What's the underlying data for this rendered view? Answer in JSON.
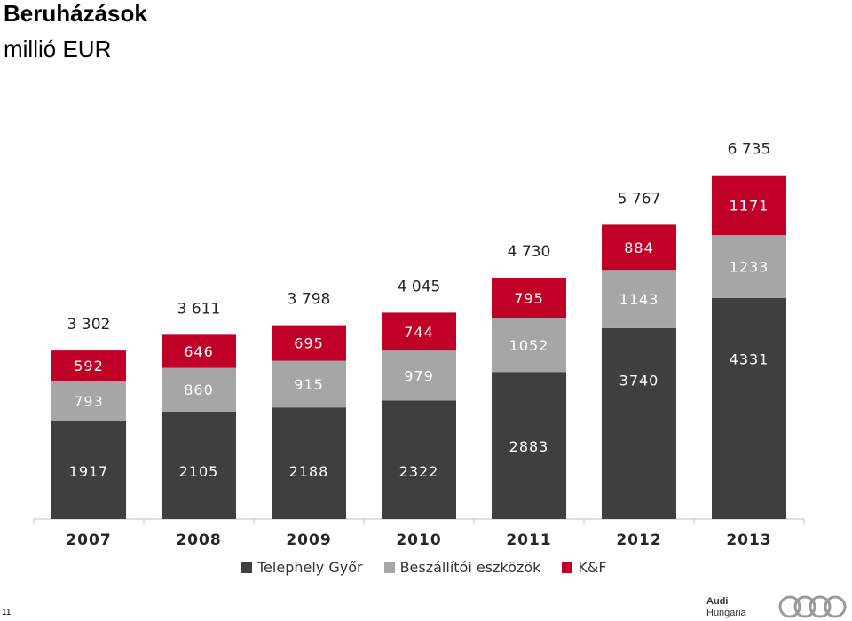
{
  "header": {
    "title": "Beruházások",
    "subtitle": "millió EUR"
  },
  "page_number": "11",
  "brand": {
    "line1": "Audi",
    "line2": "Hungaria",
    "logo_icon": "audi-rings-icon"
  },
  "colors": {
    "telephely": "#3f3f3f",
    "beszallitoi": "#a6a6a6",
    "kf": "#c00026"
  },
  "chart_data": {
    "type": "bar",
    "stacked": true,
    "categories": [
      "2007",
      "2008",
      "2009",
      "2010",
      "2011",
      "2012",
      "2013"
    ],
    "series": [
      {
        "name": "Telephely Győr",
        "values": [
          1917,
          2105,
          2188,
          2322,
          2883,
          3740,
          4331
        ],
        "labels": [
          "1917",
          "2105",
          "2188",
          "2322",
          "2883",
          "3740",
          "4331"
        ]
      },
      {
        "name": "Beszállítói eszközök",
        "values": [
          793,
          860,
          915,
          979,
          1052,
          1143,
          1233
        ],
        "labels": [
          "793",
          "860",
          "915",
          "979",
          "1052",
          "1143",
          "1233"
        ]
      },
      {
        "name": "K&F",
        "values": [
          592,
          646,
          695,
          744,
          795,
          884,
          1171
        ],
        "labels": [
          "592",
          "646",
          "695",
          "744",
          "795",
          "884",
          "1171"
        ]
      }
    ],
    "totals": [
      3302,
      3611,
      3798,
      4045,
      4730,
      5767,
      6735
    ],
    "total_labels": [
      "3 302",
      "3 611",
      "3 798",
      "4 045",
      "4 730",
      "5 767",
      "6 735"
    ],
    "ylim": [
      0,
      7000
    ],
    "legend": "bottom",
    "grid": false
  }
}
